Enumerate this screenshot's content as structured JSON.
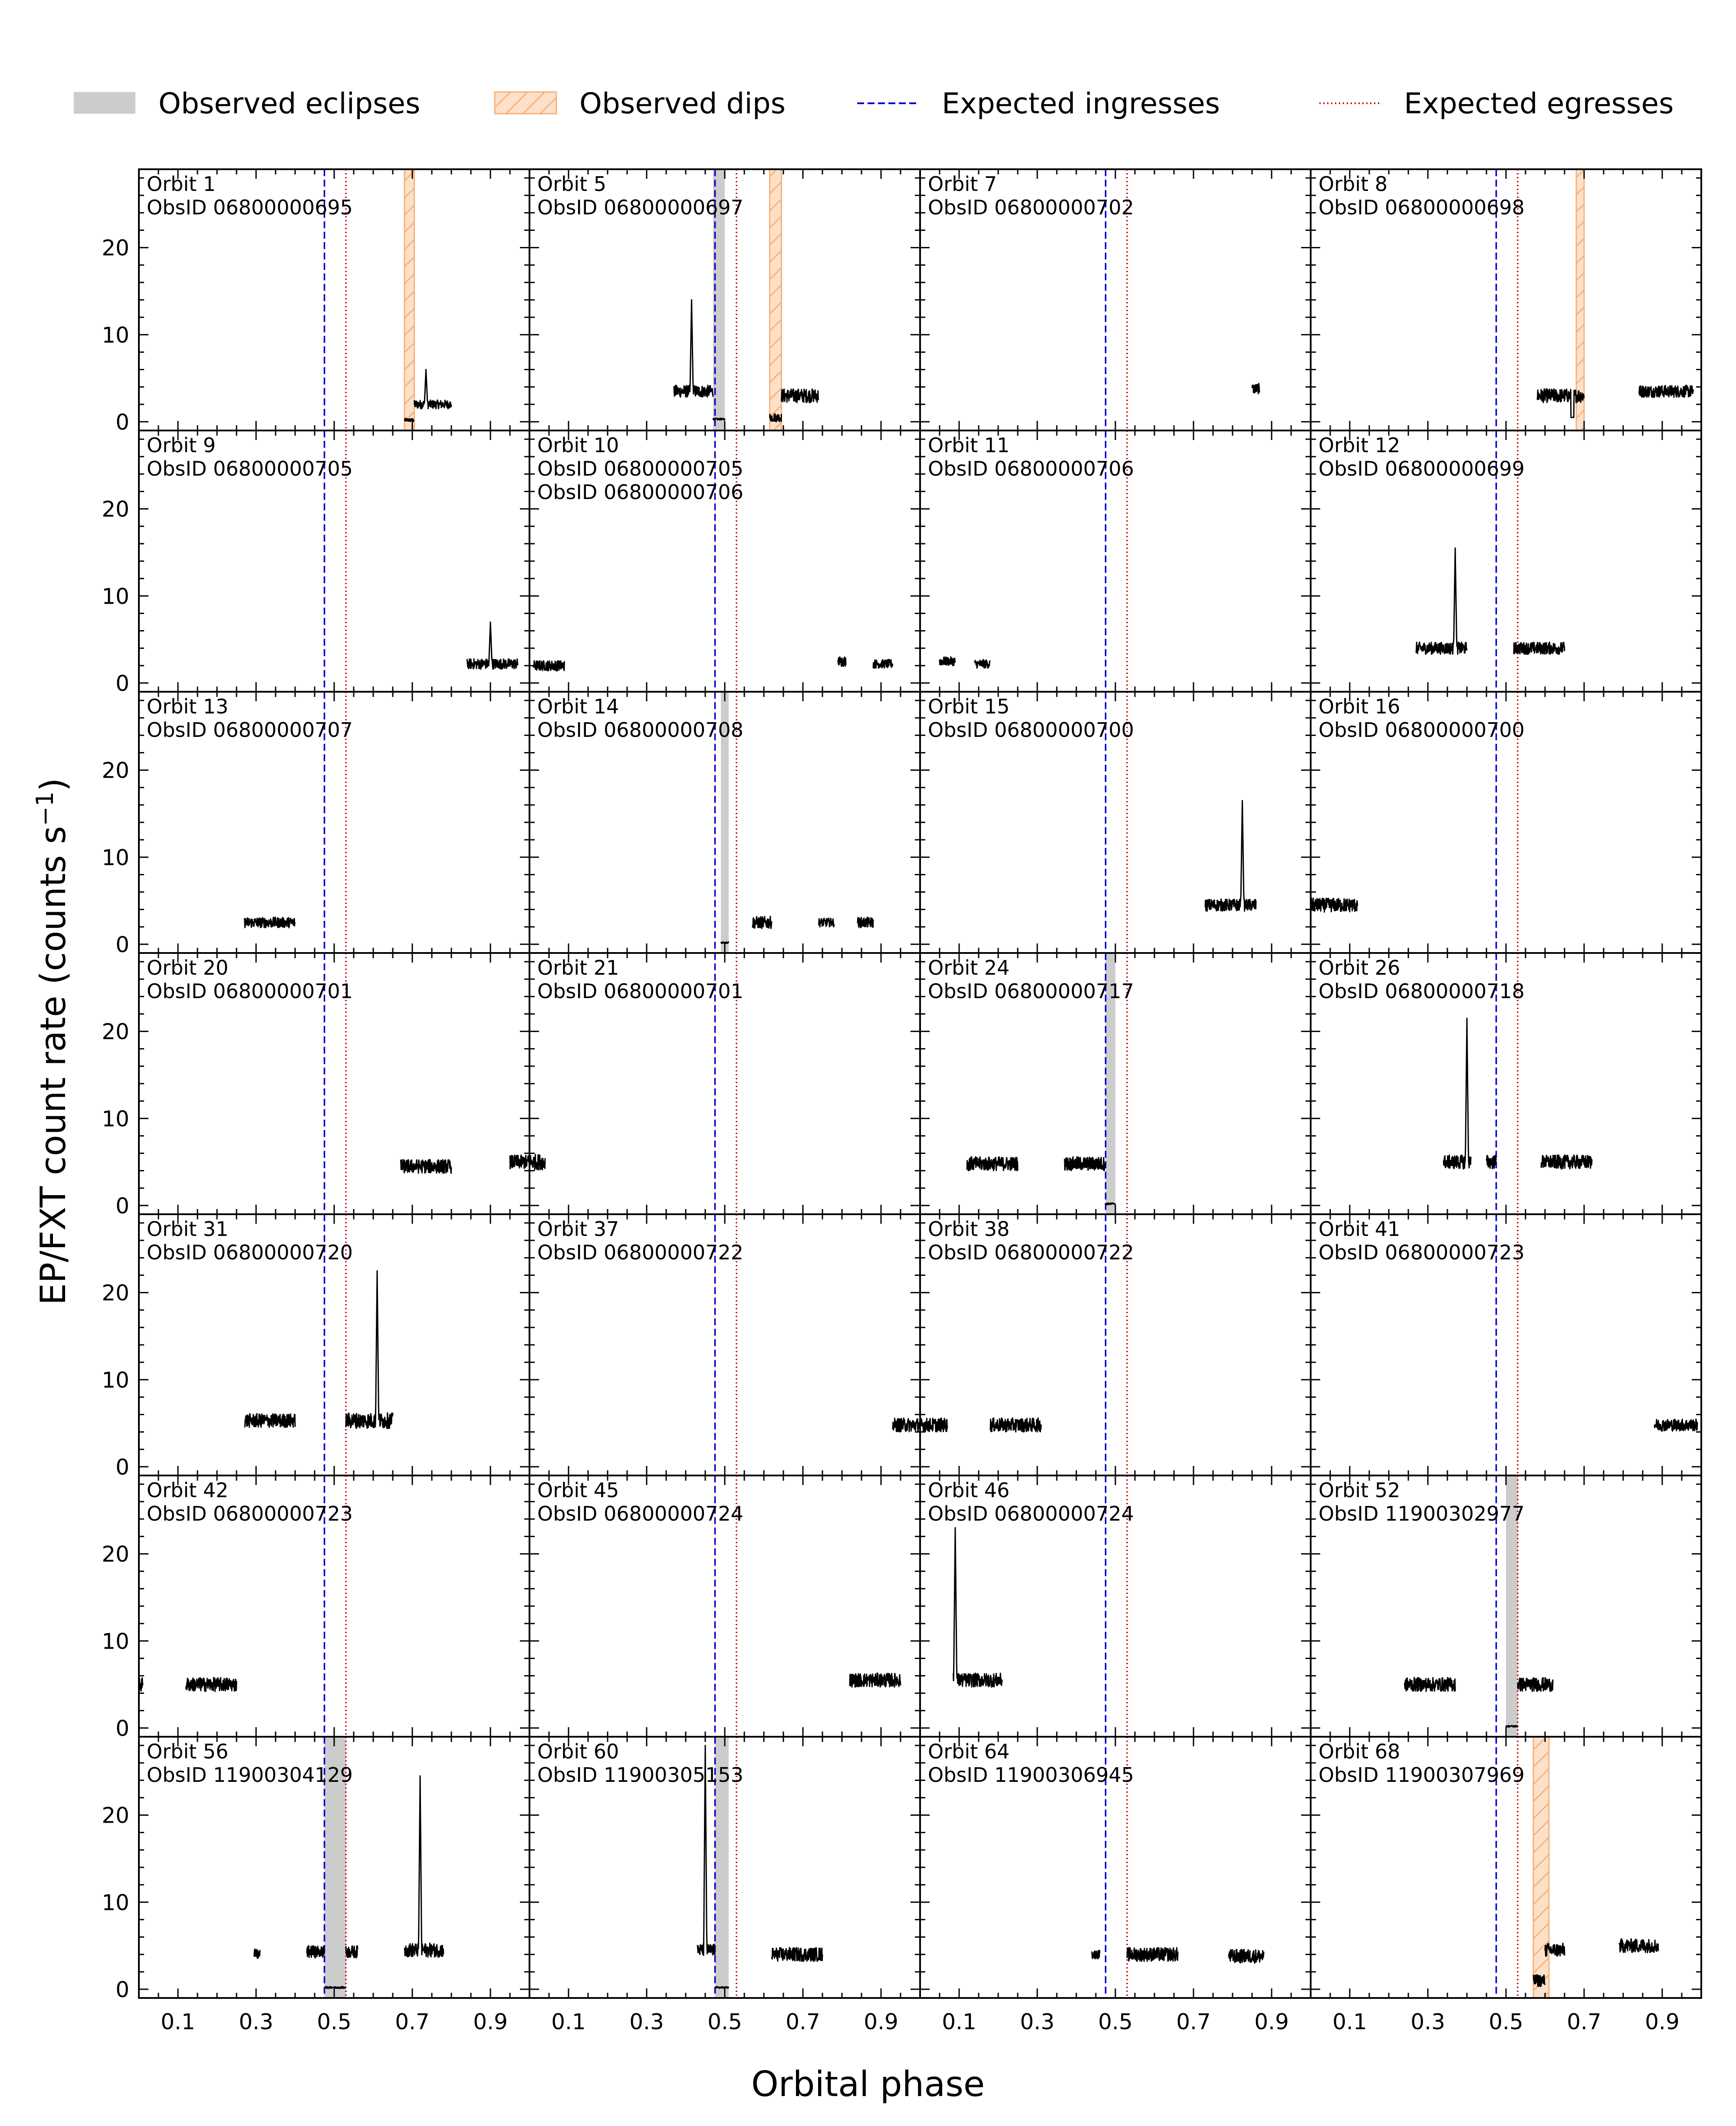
{
  "chart_data": {
    "type": "line",
    "grid": "7x4 small-multiples, shared axes",
    "grid_lines": false,
    "xlabel": "Orbital phase",
    "ylabel": "EP/FXT count rate (counts s",
    "ylabel_sup": "−1",
    "ylabel_close": ")",
    "xlim": [
      0,
      1
    ],
    "ylim": [
      -1,
      29
    ],
    "x_ticks": [
      "0.1",
      "0.3",
      "0.5",
      "0.7",
      "0.9"
    ],
    "y_ticks": [
      "0",
      "10",
      "20"
    ],
    "expected_ingress_phase": 0.475,
    "expected_egress_phase": 0.53,
    "legend": {
      "placement": "top, outside",
      "entries": [
        {
          "label": "Observed eclipses",
          "style": "filled-patch",
          "color": "#cccccc"
        },
        {
          "label": "Observed dips",
          "style": "hatched-patch",
          "color": "#f5b27a"
        },
        {
          "label": "Expected ingresses",
          "style": "dashed-line",
          "color": "#0000cc"
        },
        {
          "label": "Expected egresses",
          "style": "dotted-line",
          "color": "#cc0000"
        }
      ]
    },
    "colors": {
      "curve": "#000000",
      "eclipse": "#cccccc",
      "dip_fill": "#fde0c8",
      "dip_hatch": "#f5b27a",
      "ingress": "#0000cc",
      "egress": "#cc0000"
    },
    "panels": [
      {
        "orbit": "Orbit 1",
        "obsids": [
          "ObsID 06800000695"
        ],
        "eclipses": [],
        "dips": [
          [
            0.68,
            0.705
          ]
        ],
        "segments": [
          {
            "x0": 0.68,
            "x1": 0.705,
            "level": 0.2,
            "noise": 0.2
          },
          {
            "x0": 0.705,
            "x1": 0.8,
            "level": 2,
            "noise": 0.5,
            "spike": [
              0.735,
              6
            ]
          }
        ]
      },
      {
        "orbit": "Orbit 5",
        "obsids": [
          "ObsID 06800000697"
        ],
        "eclipses": [
          [
            0.47,
            0.5
          ]
        ],
        "dips": [
          [
            0.615,
            0.645
          ]
        ],
        "segments": [
          {
            "x0": 0.37,
            "x1": 0.47,
            "level": 3.5,
            "noise": 0.7,
            "spike": [
              0.415,
              14
            ]
          },
          {
            "x0": 0.47,
            "x1": 0.5,
            "level": 0.3,
            "noise": 0.1
          },
          {
            "x0": 0.615,
            "x1": 0.645,
            "level": 0.5,
            "noise": 0.5
          },
          {
            "x0": 0.645,
            "x1": 0.74,
            "level": 3,
            "noise": 0.8
          }
        ]
      },
      {
        "orbit": "Orbit 7",
        "obsids": [
          "ObsID 06800000702"
        ],
        "eclipses": [],
        "dips": [],
        "segments": [
          {
            "x0": 0.85,
            "x1": 0.87,
            "level": 3.8,
            "noise": 0.6
          }
        ]
      },
      {
        "orbit": "Orbit 8",
        "obsids": [
          "ObsID 06800000698"
        ],
        "eclipses": [],
        "dips": [
          [
            0.68,
            0.7
          ]
        ],
        "segments": [
          {
            "x0": 0.58,
            "x1": 0.7,
            "level": 3,
            "noise": 0.8,
            "drop": [
              0.67,
              0.5
            ]
          },
          {
            "x0": 0.84,
            "x1": 0.98,
            "level": 3.5,
            "noise": 0.7
          }
        ]
      },
      {
        "orbit": "Orbit 9",
        "obsids": [
          "ObsID 06800000705"
        ],
        "eclipses": [],
        "dips": [],
        "segments": [
          {
            "x0": 0.84,
            "x1": 0.97,
            "level": 2.2,
            "noise": 0.6,
            "spike": [
              0.9,
              7
            ]
          }
        ]
      },
      {
        "orbit": "Orbit 10",
        "obsids": [
          "ObsID 06800000705",
          "ObsID 06800000706"
        ],
        "eclipses": [],
        "dips": [],
        "segments": [
          {
            "x0": 0.01,
            "x1": 0.09,
            "level": 2,
            "noise": 0.6
          },
          {
            "x0": 0.79,
            "x1": 0.81,
            "level": 2.5,
            "noise": 0.6
          },
          {
            "x0": 0.88,
            "x1": 0.93,
            "level": 2.2,
            "noise": 0.5
          }
        ]
      },
      {
        "orbit": "Orbit 11",
        "obsids": [
          "ObsID 06800000706"
        ],
        "eclipses": [],
        "dips": [],
        "segments": [
          {
            "x0": 0.05,
            "x1": 0.09,
            "level": 2.5,
            "noise": 0.5
          },
          {
            "x0": 0.14,
            "x1": 0.18,
            "level": 2.2,
            "noise": 0.5
          }
        ]
      },
      {
        "orbit": "Orbit 12",
        "obsids": [
          "ObsID 06800000699"
        ],
        "eclipses": [],
        "dips": [],
        "segments": [
          {
            "x0": 0.27,
            "x1": 0.4,
            "level": 4,
            "noise": 0.7,
            "spike": [
              0.37,
              15.5
            ]
          },
          {
            "x0": 0.52,
            "x1": 0.65,
            "level": 4,
            "noise": 0.7
          }
        ]
      },
      {
        "orbit": "Orbit 13",
        "obsids": [
          "ObsID 06800000707"
        ],
        "eclipses": [],
        "dips": [],
        "segments": [
          {
            "x0": 0.27,
            "x1": 0.4,
            "level": 2.5,
            "noise": 0.6
          }
        ]
      },
      {
        "orbit": "Orbit 14",
        "obsids": [
          "ObsID 06800000708"
        ],
        "eclipses": [
          [
            0.49,
            0.51
          ]
        ],
        "dips": [],
        "segments": [
          {
            "x0": 0.49,
            "x1": 0.51,
            "level": 0.2,
            "noise": 0.1
          },
          {
            "x0": 0.57,
            "x1": 0.62,
            "level": 2.5,
            "noise": 0.7
          },
          {
            "x0": 0.74,
            "x1": 0.78,
            "level": 2.5,
            "noise": 0.5
          },
          {
            "x0": 0.84,
            "x1": 0.88,
            "level": 2.5,
            "noise": 0.6
          }
        ]
      },
      {
        "orbit": "Orbit 15",
        "obsids": [
          "ObsID 06800000700"
        ],
        "eclipses": [],
        "dips": [],
        "segments": [
          {
            "x0": 0.73,
            "x1": 0.86,
            "level": 4.5,
            "noise": 0.7,
            "spike": [
              0.825,
              16.5
            ]
          }
        ]
      },
      {
        "orbit": "Orbit 16",
        "obsids": [
          "ObsID 06800000700"
        ],
        "eclipses": [],
        "dips": [],
        "segments": [
          {
            "x0": 0.0,
            "x1": 0.12,
            "level": 4.5,
            "noise": 0.8
          }
        ]
      },
      {
        "orbit": "Orbit 20",
        "obsids": [
          "ObsID 06800000701"
        ],
        "eclipses": [],
        "dips": [],
        "segments": [
          {
            "x0": 0.67,
            "x1": 0.8,
            "level": 4.5,
            "noise": 0.8
          },
          {
            "x0": 0.95,
            "x1": 1.0,
            "level": 5,
            "noise": 0.8
          }
        ]
      },
      {
        "orbit": "Orbit 21",
        "obsids": [
          "ObsID 06800000701"
        ],
        "eclipses": [],
        "dips": [],
        "segments": [
          {
            "x0": 0.0,
            "x1": 0.04,
            "level": 5,
            "noise": 0.9
          }
        ]
      },
      {
        "orbit": "Orbit 24",
        "obsids": [
          "ObsID 06800000717"
        ],
        "eclipses": [
          [
            0.475,
            0.5
          ]
        ],
        "dips": [],
        "segments": [
          {
            "x0": 0.12,
            "x1": 0.25,
            "level": 4.8,
            "noise": 0.8
          },
          {
            "x0": 0.37,
            "x1": 0.475,
            "level": 4.8,
            "noise": 0.8
          },
          {
            "x0": 0.475,
            "x1": 0.5,
            "level": 0.2,
            "noise": 0.1
          }
        ]
      },
      {
        "orbit": "Orbit 26",
        "obsids": [
          "ObsID 06800000718"
        ],
        "eclipses": [],
        "dips": [],
        "segments": [
          {
            "x0": 0.34,
            "x1": 0.41,
            "level": 5,
            "noise": 0.8,
            "spike": [
              0.4,
              21.5
            ]
          },
          {
            "x0": 0.45,
            "x1": 0.475,
            "level": 5,
            "noise": 0.8
          },
          {
            "x0": 0.59,
            "x1": 0.72,
            "level": 5,
            "noise": 0.8
          }
        ]
      },
      {
        "orbit": "Orbit 31",
        "obsids": [
          "ObsID 06800000720"
        ],
        "eclipses": [],
        "dips": [],
        "segments": [
          {
            "x0": 0.27,
            "x1": 0.4,
            "level": 5.3,
            "noise": 0.8
          },
          {
            "x0": 0.53,
            "x1": 0.65,
            "level": 5.3,
            "noise": 0.9,
            "spike": [
              0.61,
              22.5
            ]
          }
        ]
      },
      {
        "orbit": "Orbit 37",
        "obsids": [
          "ObsID 06800000722"
        ],
        "eclipses": [],
        "dips": [],
        "segments": [
          {
            "x0": 0.93,
            "x1": 1.0,
            "level": 4.8,
            "noise": 0.8
          }
        ]
      },
      {
        "orbit": "Orbit 38",
        "obsids": [
          "ObsID 06800000722"
        ],
        "eclipses": [],
        "dips": [],
        "segments": [
          {
            "x0": 0.0,
            "x1": 0.07,
            "level": 4.8,
            "noise": 0.8
          },
          {
            "x0": 0.18,
            "x1": 0.31,
            "level": 4.8,
            "noise": 0.8
          }
        ]
      },
      {
        "orbit": "Orbit 41",
        "obsids": [
          "ObsID 06800000723"
        ],
        "eclipses": [],
        "dips": [],
        "segments": [
          {
            "x0": 0.88,
            "x1": 0.99,
            "level": 4.8,
            "noise": 0.7
          }
        ]
      },
      {
        "orbit": "Orbit 42",
        "obsids": [
          "ObsID 06800000723"
        ],
        "eclipses": [],
        "dips": [],
        "segments": [
          {
            "x0": 0.0,
            "x1": 0.01,
            "level": 5,
            "noise": 0.8
          },
          {
            "x0": 0.12,
            "x1": 0.25,
            "level": 5,
            "noise": 0.8
          }
        ]
      },
      {
        "orbit": "Orbit 45",
        "obsids": [
          "ObsID 06800000724"
        ],
        "eclipses": [],
        "dips": [],
        "segments": [
          {
            "x0": 0.82,
            "x1": 0.95,
            "level": 5.5,
            "noise": 0.8
          }
        ]
      },
      {
        "orbit": "Orbit 46",
        "obsids": [
          "ObsID 06800000724"
        ],
        "eclipses": [],
        "dips": [],
        "segments": [
          {
            "x0": 0.085,
            "x1": 0.21,
            "level": 5.5,
            "noise": 0.8,
            "spike": [
              0.09,
              23
            ]
          }
        ]
      },
      {
        "orbit": "Orbit 52",
        "obsids": [
          "ObsID 11900302977"
        ],
        "eclipses": [
          [
            0.5,
            0.53
          ]
        ],
        "dips": [],
        "segments": [
          {
            "x0": 0.24,
            "x1": 0.37,
            "level": 5,
            "noise": 0.8
          },
          {
            "x0": 0.5,
            "x1": 0.53,
            "level": 0.2,
            "noise": 0.1
          },
          {
            "x0": 0.53,
            "x1": 0.62,
            "level": 5,
            "noise": 0.8
          }
        ]
      },
      {
        "orbit": "Orbit 56",
        "obsids": [
          "ObsID 11900304129"
        ],
        "eclipses": [
          [
            0.475,
            0.53
          ]
        ],
        "dips": [],
        "segments": [
          {
            "x0": 0.295,
            "x1": 0.31,
            "level": 4,
            "noise": 0.6
          },
          {
            "x0": 0.43,
            "x1": 0.475,
            "level": 4.3,
            "noise": 0.7
          },
          {
            "x0": 0.475,
            "x1": 0.53,
            "level": 0.2,
            "noise": 0.1
          },
          {
            "x0": 0.53,
            "x1": 0.56,
            "level": 4.3,
            "noise": 0.7
          },
          {
            "x0": 0.68,
            "x1": 0.78,
            "level": 4.5,
            "noise": 0.8,
            "spike": [
              0.72,
              24.5
            ]
          }
        ]
      },
      {
        "orbit": "Orbit 60",
        "obsids": [
          "ObsID 11900305153"
        ],
        "eclipses": [
          [
            0.475,
            0.51
          ]
        ],
        "dips": [],
        "segments": [
          {
            "x0": 0.43,
            "x1": 0.475,
            "level": 4.5,
            "noise": 0.7,
            "spike": [
              0.45,
              28
            ]
          },
          {
            "x0": 0.475,
            "x1": 0.51,
            "level": 0.2,
            "noise": 0.1
          },
          {
            "x0": 0.62,
            "x1": 0.75,
            "level": 4,
            "noise": 0.8
          }
        ]
      },
      {
        "orbit": "Orbit 64",
        "obsids": [
          "ObsID 11900306945"
        ],
        "eclipses": [],
        "dips": [],
        "segments": [
          {
            "x0": 0.44,
            "x1": 0.46,
            "level": 4,
            "noise": 0.5
          },
          {
            "x0": 0.53,
            "x1": 0.66,
            "level": 4,
            "noise": 0.8
          },
          {
            "x0": 0.79,
            "x1": 0.88,
            "level": 3.8,
            "noise": 0.8
          }
        ]
      },
      {
        "orbit": "Orbit 68",
        "obsids": [
          "ObsID 11900307969"
        ],
        "eclipses": [],
        "dips": [
          [
            0.57,
            0.61
          ]
        ],
        "segments": [
          {
            "x0": 0.57,
            "x1": 0.6,
            "level": 1,
            "noise": 0.7
          },
          {
            "x0": 0.6,
            "x1": 0.65,
            "level": 4.5,
            "noise": 0.8
          },
          {
            "x0": 0.79,
            "x1": 0.89,
            "level": 5,
            "noise": 0.8
          }
        ]
      }
    ]
  }
}
